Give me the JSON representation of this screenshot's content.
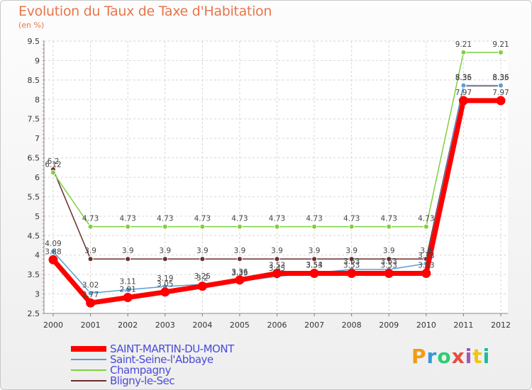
{
  "chart_data": {
    "type": "line",
    "title": "Evolution du Taux de Taxe d'Habitation",
    "subtitle": "(en %)",
    "xlabel": "",
    "ylabel": "",
    "x": [
      "2000",
      "2001",
      "2002",
      "2003",
      "2004",
      "2005",
      "2006",
      "2007",
      "2008",
      "2009",
      "2010",
      "2011",
      "2012"
    ],
    "ylim": [
      2.5,
      9.5
    ],
    "yticks": [
      2.5,
      3,
      3.5,
      4,
      4.5,
      5,
      5.5,
      6,
      6.5,
      7,
      7.5,
      8,
      8.5,
      9,
      9.5
    ],
    "legend_position": "bottom-left",
    "series": [
      {
        "name": "Bligny-le-Sec",
        "color": "#6b2d2d",
        "values": [
          6.2,
          3.9,
          3.9,
          3.9,
          3.9,
          3.9,
          3.9,
          3.9,
          3.9,
          3.9,
          3.9,
          8.35,
          8.35
        ]
      },
      {
        "name": "Champagny",
        "color": "#7fcf3f",
        "values": [
          6.12,
          4.73,
          4.73,
          4.73,
          4.73,
          4.73,
          4.73,
          4.73,
          4.73,
          4.73,
          4.73,
          9.21,
          9.21
        ]
      },
      {
        "name": "Saint-Seine-l'Abbaye",
        "color": "#5a9fd4",
        "values": [
          4.09,
          3.02,
          3.11,
          3.19,
          3.25,
          3.33,
          3.45,
          3.54,
          3.63,
          3.63,
          3.78,
          8.36,
          8.36
        ]
      },
      {
        "name": "SAINT-MARTIN-DU-MONT",
        "color": "#ff0000",
        "values": [
          3.88,
          2.77,
          2.91,
          3.05,
          3.2,
          3.36,
          3.53,
          3.53,
          3.53,
          3.53,
          3.53,
          7.97,
          7.97
        ]
      }
    ],
    "data_labels": [
      {
        "series": "Bligny-le-Sec",
        "labels": [
          "6.2",
          "3.9",
          "3.9",
          "3.9",
          "3.9",
          "3.9",
          "3.9",
          "3.9",
          "3.9",
          "3.9",
          "3.9",
          "8.35",
          "8.35"
        ]
      },
      {
        "series": "Champagny",
        "labels": [
          "6.12",
          "4.73",
          "4.73",
          "4.73",
          "4.73",
          "4.73",
          "4.73",
          "4.73",
          "4.73",
          "4.73",
          "4.73",
          "9.21",
          "9.21"
        ]
      },
      {
        "series": "Saint-Seine-l'Abbaye",
        "labels": [
          "4.09",
          "3.02",
          "3.11",
          "3.19",
          "3.25",
          "3.33",
          "3.45",
          "3.54",
          "3.63",
          "3.63",
          "3.78",
          "8.36",
          "8.36"
        ]
      },
      {
        "series": "SAINT-MARTIN-DU-MONT",
        "labels": [
          "3.88",
          "2.77",
          "2.91",
          "3.05",
          "3.2",
          "3.36",
          "3.53",
          "3.53",
          "3.53",
          "3.53",
          "3.53",
          "7.97",
          "7.97"
        ]
      }
    ],
    "legend": [
      "SAINT-MARTIN-DU-MONT",
      "Saint-Seine-l'Abbaye",
      "Champagny",
      "Bligny-le-Sec"
    ]
  },
  "brand": {
    "letters": [
      "P",
      "r",
      "o",
      "x",
      "i",
      "t",
      "i"
    ],
    "colors": [
      "#f39c12",
      "#3498db",
      "#2ecc71",
      "#e74c3c",
      "#9b59b6",
      "#f1c40f",
      "#1abc9c"
    ]
  }
}
